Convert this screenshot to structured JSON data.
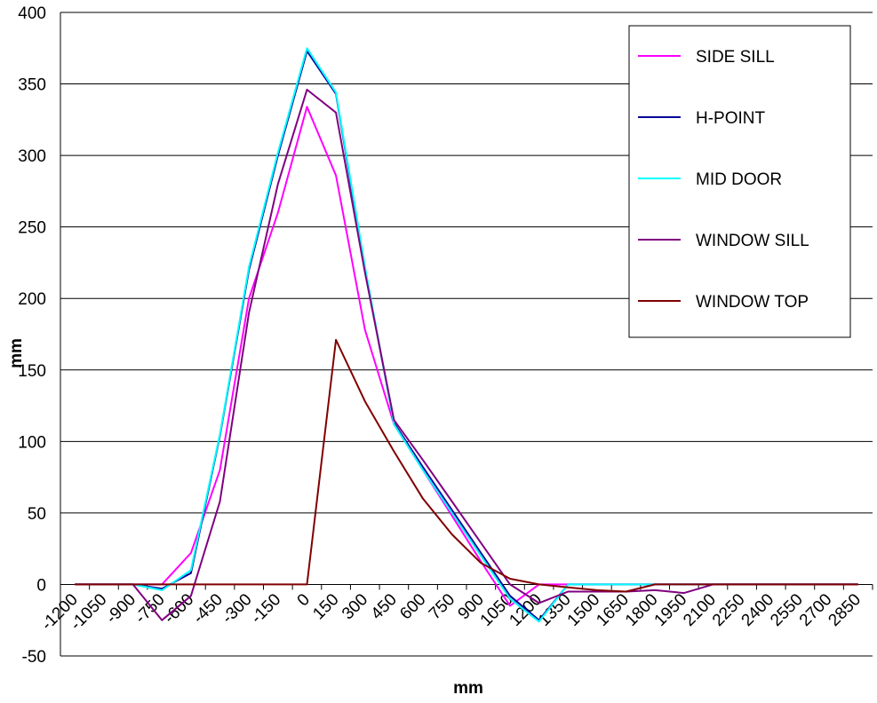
{
  "chart_data": {
    "type": "line",
    "xlabel": "mm",
    "ylabel": "mm",
    "ylim": [
      -50,
      400
    ],
    "yticks": [
      -50,
      0,
      50,
      100,
      150,
      200,
      250,
      300,
      350,
      400
    ],
    "grid": "horizontal",
    "legend_position": "top-right",
    "categories": [
      "-1200",
      "-1050",
      "-900",
      "-750",
      "-600",
      "-450",
      "-300",
      "-150",
      "0",
      "150",
      "300",
      "450",
      "600",
      "750",
      "900",
      "1050",
      "1200",
      "1350",
      "1500",
      "1650",
      "1800",
      "1950",
      "2100",
      "2250",
      "2400",
      "2550",
      "2700",
      "2850"
    ],
    "series": [
      {
        "name": "SIDE SILL",
        "color": "#ff00ff",
        "values": [
          0,
          0,
          0,
          0,
          22,
          80,
          200,
          260,
          334,
          286,
          178,
          112,
          80,
          48,
          16,
          -15,
          0,
          0,
          0,
          0,
          0,
          0,
          0,
          0,
          0,
          0,
          0,
          0
        ]
      },
      {
        "name": "H-POINT",
        "color": "#000099",
        "values": [
          0,
          0,
          0,
          -3,
          8,
          104,
          220,
          300,
          373,
          343,
          220,
          113,
          82,
          52,
          22,
          -8,
          -25,
          0,
          0,
          0,
          0,
          0,
          0,
          0,
          0,
          0,
          0,
          0
        ]
      },
      {
        "name": "MID DOOR",
        "color": "#00ffff",
        "values": [
          0,
          0,
          0,
          -4,
          10,
          105,
          222,
          302,
          375,
          344,
          222,
          112,
          80,
          50,
          20,
          -10,
          -26,
          0,
          0,
          0,
          0,
          0,
          0,
          0,
          0,
          0,
          0,
          0
        ]
      },
      {
        "name": "WINDOW SILL",
        "color": "#800080",
        "values": [
          0,
          0,
          0,
          -25,
          -8,
          58,
          190,
          280,
          346,
          330,
          218,
          115,
          87,
          58,
          29,
          0,
          -13,
          -5,
          -5,
          -5,
          -4,
          -6,
          0,
          0,
          0,
          0,
          0,
          0
        ]
      },
      {
        "name": "WINDOW TOP",
        "color": "#800000",
        "values": [
          0,
          0,
          0,
          0,
          0,
          0,
          0,
          0,
          0,
          171,
          128,
          93,
          60,
          35,
          15,
          4,
          0,
          -2,
          -4,
          -5,
          0,
          0,
          0,
          0,
          0,
          0,
          0,
          0
        ]
      }
    ]
  }
}
